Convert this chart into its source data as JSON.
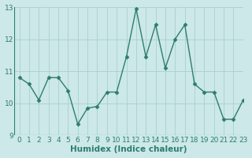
{
  "x": [
    0,
    1,
    2,
    3,
    4,
    5,
    6,
    7,
    8,
    9,
    10,
    11,
    12,
    13,
    14,
    15,
    16,
    17,
    18,
    19,
    20,
    21,
    22,
    23
  ],
  "y": [
    10.8,
    10.6,
    10.1,
    10.8,
    10.8,
    10.4,
    9.35,
    9.85,
    9.9,
    10.35,
    10.35,
    11.45,
    12.95,
    11.45,
    12.45,
    11.1,
    12.0,
    12.45,
    10.6,
    10.35,
    10.35,
    9.5,
    9.5,
    10.1
  ],
  "line_color": "#2e7d6e",
  "marker": "D",
  "marker_size": 2.5,
  "background_color": "#cce8e8",
  "grid_color": "#aacfcf",
  "xlabel": "Humidex (Indice chaleur)",
  "ylim": [
    9,
    13
  ],
  "xlim": [
    -0.5,
    23
  ],
  "yticks": [
    9,
    10,
    11,
    12,
    13
  ],
  "xticks": [
    0,
    1,
    2,
    3,
    4,
    5,
    6,
    7,
    8,
    9,
    10,
    11,
    12,
    13,
    14,
    15,
    16,
    17,
    18,
    19,
    20,
    21,
    22,
    23
  ],
  "xlabel_fontsize": 7.5,
  "tick_fontsize": 6.5,
  "line_width": 1.0
}
